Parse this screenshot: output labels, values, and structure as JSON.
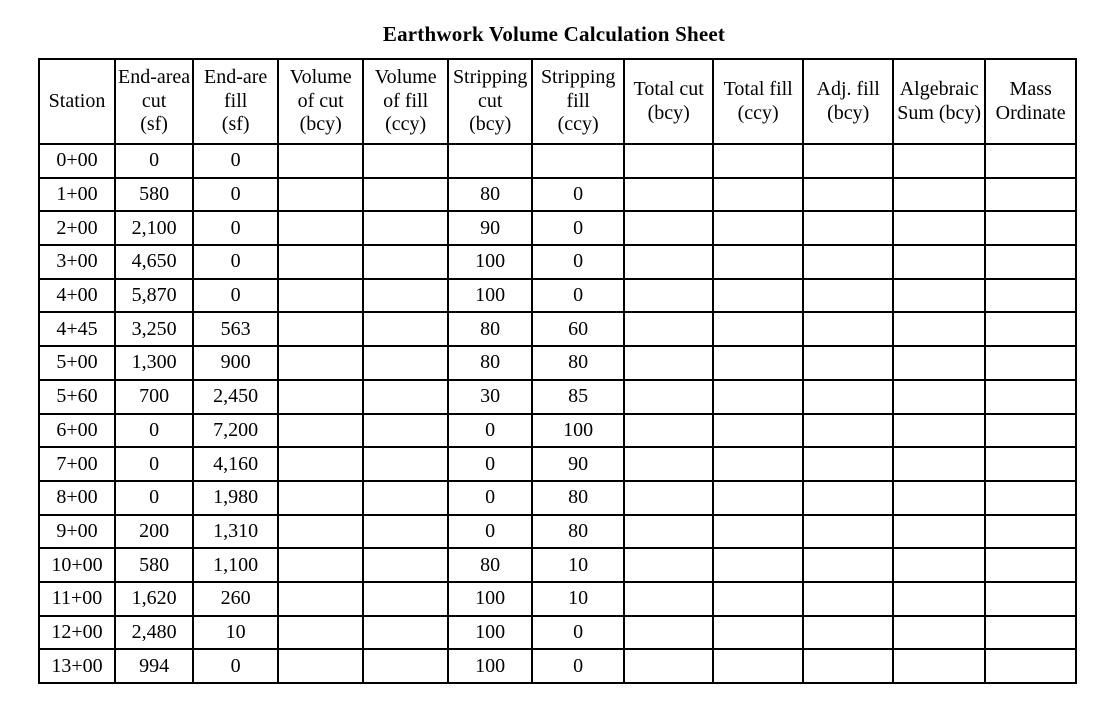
{
  "page": {
    "title": "Earthwork Volume Calculation Sheet"
  },
  "table": {
    "headers": [
      {
        "id": "station",
        "lines": [
          "Station"
        ]
      },
      {
        "id": "end-area-cut",
        "lines": [
          "End-area",
          "cut",
          "(sf)"
        ]
      },
      {
        "id": "end-area-fill",
        "lines": [
          "End-are",
          "fill",
          "(sf)"
        ]
      },
      {
        "id": "volume-of-cut",
        "lines": [
          "Volume",
          "of cut",
          "(bcy)"
        ]
      },
      {
        "id": "volume-of-fill",
        "lines": [
          "Volume",
          "of fill",
          "(ccy)"
        ]
      },
      {
        "id": "stripping-cut",
        "lines": [
          "Stripping",
          "cut",
          "(bcy)"
        ]
      },
      {
        "id": "stripping-fill",
        "lines": [
          "Stripping",
          "fill",
          "(ccy)"
        ]
      },
      {
        "id": "total-cut",
        "lines": [
          "Total cut",
          "(bcy)"
        ]
      },
      {
        "id": "total-fill",
        "lines": [
          "Total fill",
          "(ccy)"
        ]
      },
      {
        "id": "adj-fill",
        "lines": [
          "Adj. fill",
          "(bcy)"
        ]
      },
      {
        "id": "algebraic-sum",
        "lines": [
          "Algebraic",
          "Sum (bcy)"
        ]
      },
      {
        "id": "mass-ordinate",
        "lines": [
          "Mass",
          "Ordinate"
        ]
      }
    ],
    "rows": [
      [
        "0+00",
        "0",
        "0",
        "",
        "",
        "",
        "",
        "",
        "",
        "",
        "",
        ""
      ],
      [
        "1+00",
        "580",
        "0",
        "",
        "",
        "80",
        "0",
        "",
        "",
        "",
        "",
        ""
      ],
      [
        "2+00",
        "2,100",
        "0",
        "",
        "",
        "90",
        "0",
        "",
        "",
        "",
        "",
        ""
      ],
      [
        "3+00",
        "4,650",
        "0",
        "",
        "",
        "100",
        "0",
        "",
        "",
        "",
        "",
        ""
      ],
      [
        "4+00",
        "5,870",
        "0",
        "",
        "",
        "100",
        "0",
        "",
        "",
        "",
        "",
        ""
      ],
      [
        "4+45",
        "3,250",
        "563",
        "",
        "",
        "80",
        "60",
        "",
        "",
        "",
        "",
        ""
      ],
      [
        "5+00",
        "1,300",
        "900",
        "",
        "",
        "80",
        "80",
        "",
        "",
        "",
        "",
        ""
      ],
      [
        "5+60",
        "700",
        "2,450",
        "",
        "",
        "30",
        "85",
        "",
        "",
        "",
        "",
        ""
      ],
      [
        "6+00",
        "0",
        "7,200",
        "",
        "",
        "0",
        "100",
        "",
        "",
        "",
        "",
        ""
      ],
      [
        "7+00",
        "0",
        "4,160",
        "",
        "",
        "0",
        "90",
        "",
        "",
        "",
        "",
        ""
      ],
      [
        "8+00",
        "0",
        "1,980",
        "",
        "",
        "0",
        "80",
        "",
        "",
        "",
        "",
        ""
      ],
      [
        "9+00",
        "200",
        "1,310",
        "",
        "",
        "0",
        "80",
        "",
        "",
        "",
        "",
        ""
      ],
      [
        "10+00",
        "580",
        "1,100",
        "",
        "",
        "80",
        "10",
        "",
        "",
        "",
        "",
        ""
      ],
      [
        "11+00",
        "1,620",
        "260",
        "",
        "",
        "100",
        "10",
        "",
        "",
        "",
        "",
        ""
      ],
      [
        "12+00",
        "2,480",
        "10",
        "",
        "",
        "100",
        "0",
        "",
        "",
        "",
        "",
        ""
      ],
      [
        "13+00",
        "994",
        "0",
        "",
        "",
        "100",
        "0",
        "",
        "",
        "",
        "",
        ""
      ]
    ]
  }
}
